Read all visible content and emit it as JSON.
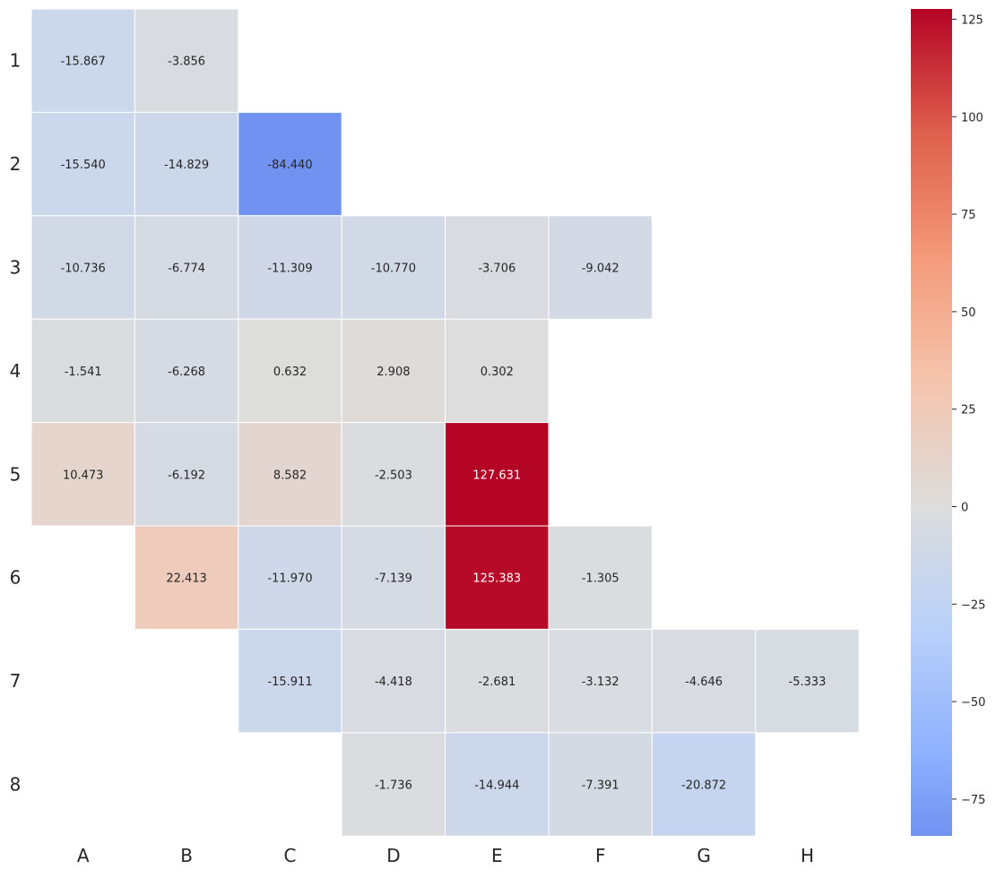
{
  "chart_data": {
    "type": "heatmap",
    "title": "",
    "xlabel": "",
    "ylabel": "",
    "x_categories": [
      "A",
      "B",
      "C",
      "D",
      "E",
      "F",
      "G",
      "H"
    ],
    "y_categories": [
      "1",
      "2",
      "3",
      "4",
      "5",
      "6",
      "7",
      "8"
    ],
    "colormap": "coolwarm",
    "center": 0,
    "vmin": -84.44,
    "vmax": 127.631,
    "colorbar_ticks": [
      125,
      100,
      75,
      50,
      25,
      0,
      -25,
      -50,
      -75
    ],
    "colorbar_tick_labels": [
      "125",
      "100",
      "75",
      "50",
      "25",
      "0",
      "−25",
      "−50",
      "−75"
    ],
    "cells": [
      {
        "row": "1",
        "col": "A",
        "value": -15.867,
        "label": "-15.867"
      },
      {
        "row": "1",
        "col": "B",
        "value": -3.856,
        "label": "-3.856"
      },
      {
        "row": "2",
        "col": "A",
        "value": -15.54,
        "label": "-15.540"
      },
      {
        "row": "2",
        "col": "B",
        "value": -14.829,
        "label": "-14.829"
      },
      {
        "row": "2",
        "col": "C",
        "value": -84.44,
        "label": "-84.440"
      },
      {
        "row": "3",
        "col": "A",
        "value": -10.736,
        "label": "-10.736"
      },
      {
        "row": "3",
        "col": "B",
        "value": -6.774,
        "label": "-6.774"
      },
      {
        "row": "3",
        "col": "C",
        "value": -11.309,
        "label": "-11.309"
      },
      {
        "row": "3",
        "col": "D",
        "value": -10.77,
        "label": "-10.770"
      },
      {
        "row": "3",
        "col": "E",
        "value": -3.706,
        "label": "-3.706"
      },
      {
        "row": "3",
        "col": "F",
        "value": -9.042,
        "label": "-9.042"
      },
      {
        "row": "4",
        "col": "A",
        "value": -1.541,
        "label": "-1.541"
      },
      {
        "row": "4",
        "col": "B",
        "value": -6.268,
        "label": "-6.268"
      },
      {
        "row": "4",
        "col": "C",
        "value": 0.632,
        "label": "0.632"
      },
      {
        "row": "4",
        "col": "D",
        "value": 2.908,
        "label": "2.908"
      },
      {
        "row": "4",
        "col": "E",
        "value": 0.302,
        "label": "0.302"
      },
      {
        "row": "5",
        "col": "A",
        "value": 10.473,
        "label": "10.473"
      },
      {
        "row": "5",
        "col": "B",
        "value": -6.192,
        "label": "-6.192"
      },
      {
        "row": "5",
        "col": "C",
        "value": 8.582,
        "label": "8.582"
      },
      {
        "row": "5",
        "col": "D",
        "value": -2.503,
        "label": "-2.503"
      },
      {
        "row": "5",
        "col": "E",
        "value": 127.631,
        "label": "127.631"
      },
      {
        "row": "6",
        "col": "B",
        "value": 22.413,
        "label": "22.413"
      },
      {
        "row": "6",
        "col": "C",
        "value": -11.97,
        "label": "-11.970"
      },
      {
        "row": "6",
        "col": "D",
        "value": -7.139,
        "label": "-7.139"
      },
      {
        "row": "6",
        "col": "E",
        "value": 125.383,
        "label": "125.383"
      },
      {
        "row": "6",
        "col": "F",
        "value": -1.305,
        "label": "-1.305"
      },
      {
        "row": "7",
        "col": "C",
        "value": -15.911,
        "label": "-15.911"
      },
      {
        "row": "7",
        "col": "D",
        "value": -4.418,
        "label": "-4.418"
      },
      {
        "row": "7",
        "col": "E",
        "value": -2.681,
        "label": "-2.681"
      },
      {
        "row": "7",
        "col": "F",
        "value": -3.132,
        "label": "-3.132"
      },
      {
        "row": "7",
        "col": "G",
        "value": -4.646,
        "label": "-4.646"
      },
      {
        "row": "7",
        "col": "H",
        "value": -5.333,
        "label": "-5.333"
      },
      {
        "row": "8",
        "col": "D",
        "value": -1.736,
        "label": "-1.736"
      },
      {
        "row": "8",
        "col": "E",
        "value": -14.944,
        "label": "-14.944"
      },
      {
        "row": "8",
        "col": "F",
        "value": -7.391,
        "label": "-7.391"
      },
      {
        "row": "8",
        "col": "G",
        "value": -20.872,
        "label": "-20.872"
      }
    ]
  }
}
